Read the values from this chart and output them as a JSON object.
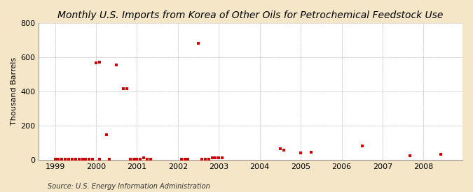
{
  "title": "Monthly U.S. Imports from Korea of Other Oils for Petrochemical Feedstock Use",
  "ylabel": "Thousand Barrels",
  "source": "Source: U.S. Energy Information Administration",
  "background_color": "#f5e6c8",
  "plot_background_color": "#ffffff",
  "marker_color": "#cc0000",
  "marker_size": 3,
  "ylim": [
    0,
    800
  ],
  "yticks": [
    0,
    200,
    400,
    600,
    800
  ],
  "nonzero_points": [
    [
      1999.0,
      2
    ],
    [
      1999.083,
      2
    ],
    [
      1999.167,
      2
    ],
    [
      1999.25,
      2
    ],
    [
      1999.333,
      2
    ],
    [
      1999.417,
      2
    ],
    [
      1999.5,
      2
    ],
    [
      1999.583,
      2
    ],
    [
      1999.667,
      2
    ],
    [
      1999.75,
      2
    ],
    [
      1999.833,
      2
    ],
    [
      1999.917,
      2
    ],
    [
      2000.0,
      565
    ],
    [
      2000.083,
      570
    ],
    [
      2000.25,
      145
    ],
    [
      2000.5,
      555
    ],
    [
      2000.667,
      415
    ],
    [
      2000.75,
      415
    ],
    [
      2000.083,
      2
    ],
    [
      2000.333,
      2
    ],
    [
      2000.833,
      2
    ],
    [
      2000.917,
      2
    ],
    [
      2001.167,
      10
    ],
    [
      2001.0,
      2
    ],
    [
      2001.083,
      2
    ],
    [
      2001.25,
      2
    ],
    [
      2001.333,
      2
    ],
    [
      2002.5,
      680
    ],
    [
      2002.083,
      2
    ],
    [
      2002.167,
      2
    ],
    [
      2002.25,
      2
    ],
    [
      2002.583,
      2
    ],
    [
      2002.667,
      2
    ],
    [
      2002.75,
      2
    ],
    [
      2002.833,
      12
    ],
    [
      2002.917,
      12
    ],
    [
      2003.0,
      12
    ],
    [
      2003.083,
      12
    ],
    [
      2004.5,
      65
    ],
    [
      2004.583,
      55
    ],
    [
      2005.0,
      40
    ],
    [
      2005.25,
      45
    ],
    [
      2006.5,
      80
    ],
    [
      2007.667,
      25
    ],
    [
      2008.417,
      30
    ]
  ],
  "xtick_positions": [
    1999,
    2000,
    2001,
    2002,
    2003,
    2004,
    2005,
    2006,
    2007,
    2008
  ],
  "xtick_labels": [
    "1999",
    "2000",
    "2001",
    "2002",
    "2003",
    "2004",
    "2005",
    "2006",
    "2007",
    "2008"
  ],
  "grid_color": "#bbbbbb",
  "title_fontsize": 10,
  "axis_fontsize": 8,
  "source_fontsize": 7
}
